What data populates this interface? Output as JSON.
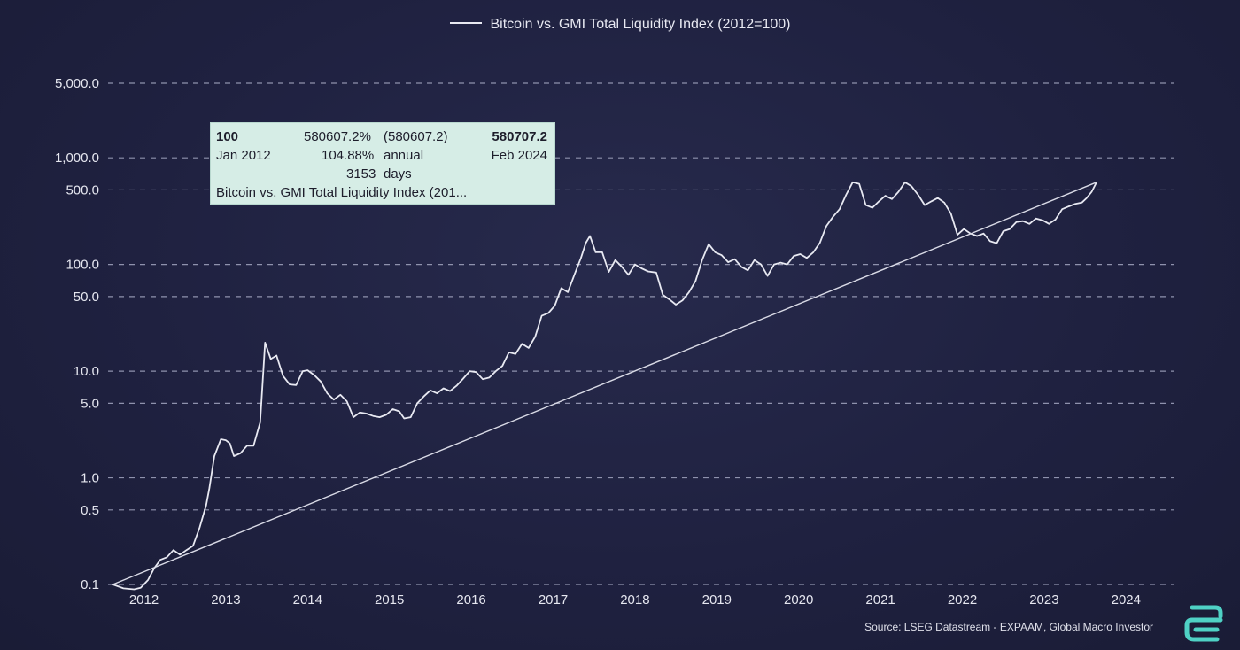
{
  "chart_data": {
    "type": "line",
    "title": "",
    "legend": {
      "entries": [
        "Bitcoin vs. GMI Total Liquidity Index (2012=100)"
      ],
      "placement": "top-center"
    },
    "y_scale": "log",
    "ylim": [
      0.08,
      8000
    ],
    "xlim": [
      2011.6,
      2024.4
    ],
    "y_ticks": [
      {
        "value": 5000,
        "label": "5,000.0"
      },
      {
        "value": 1000,
        "label": "1,000.0"
      },
      {
        "value": 500,
        "label": "500.0"
      },
      {
        "value": 100,
        "label": "100.0"
      },
      {
        "value": 50,
        "label": "50.0"
      },
      {
        "value": 10,
        "label": "10.0"
      },
      {
        "value": 5,
        "label": "5.0"
      },
      {
        "value": 1,
        "label": "1.0"
      },
      {
        "value": 0.5,
        "label": "0.5"
      },
      {
        "value": 0.1,
        "label": "0.1"
      }
    ],
    "x_ticks": [
      "2012",
      "2013",
      "2014",
      "2015",
      "2016",
      "2017",
      "2018",
      "2019",
      "2020",
      "2021",
      "2022",
      "2023",
      "2024"
    ],
    "grid": {
      "horizontal": true,
      "style": "dashed"
    },
    "series": [
      {
        "name": "Bitcoin vs. GMI Total Liquidity Index (2012=100)",
        "color": "#e8e9f2",
        "points": [
          [
            2011.62,
            0.1
          ],
          [
            2011.75,
            0.092
          ],
          [
            2011.88,
            0.09
          ],
          [
            2011.96,
            0.093
          ],
          [
            2012.05,
            0.11
          ],
          [
            2012.12,
            0.14
          ],
          [
            2012.2,
            0.17
          ],
          [
            2012.28,
            0.18
          ],
          [
            2012.36,
            0.21
          ],
          [
            2012.44,
            0.19
          ],
          [
            2012.52,
            0.21
          ],
          [
            2012.6,
            0.23
          ],
          [
            2012.68,
            0.34
          ],
          [
            2012.76,
            0.55
          ],
          [
            2012.8,
            0.8
          ],
          [
            2012.86,
            1.6
          ],
          [
            2012.94,
            2.3
          ],
          [
            2013.0,
            2.25
          ],
          [
            2013.05,
            2.1
          ],
          [
            2013.1,
            1.6
          ],
          [
            2013.18,
            1.7
          ],
          [
            2013.26,
            2.0
          ],
          [
            2013.34,
            2.0
          ],
          [
            2013.42,
            3.3
          ],
          [
            2013.48,
            18.5
          ],
          [
            2013.55,
            13.0
          ],
          [
            2013.62,
            14.0
          ],
          [
            2013.7,
            9.0
          ],
          [
            2013.78,
            7.5
          ],
          [
            2013.86,
            7.4
          ],
          [
            2013.94,
            10.0
          ],
          [
            2014.0,
            10.2
          ],
          [
            2014.08,
            9.2
          ],
          [
            2014.16,
            8.0
          ],
          [
            2014.24,
            6.2
          ],
          [
            2014.32,
            5.4
          ],
          [
            2014.4,
            6.0
          ],
          [
            2014.48,
            5.2
          ],
          [
            2014.56,
            3.7
          ],
          [
            2014.64,
            4.1
          ],
          [
            2014.72,
            4.0
          ],
          [
            2014.8,
            3.8
          ],
          [
            2014.88,
            3.7
          ],
          [
            2014.96,
            3.9
          ],
          [
            2015.04,
            4.4
          ],
          [
            2015.12,
            4.2
          ],
          [
            2015.18,
            3.6
          ],
          [
            2015.26,
            3.7
          ],
          [
            2015.34,
            5.0
          ],
          [
            2015.42,
            5.8
          ],
          [
            2015.5,
            6.6
          ],
          [
            2015.58,
            6.2
          ],
          [
            2015.66,
            6.9
          ],
          [
            2015.74,
            6.5
          ],
          [
            2015.82,
            7.3
          ],
          [
            2015.9,
            8.5
          ],
          [
            2015.98,
            10.0
          ],
          [
            2016.06,
            9.8
          ],
          [
            2016.14,
            8.4
          ],
          [
            2016.22,
            8.7
          ],
          [
            2016.3,
            10.0
          ],
          [
            2016.38,
            11.2
          ],
          [
            2016.46,
            15.0
          ],
          [
            2016.54,
            14.5
          ],
          [
            2016.62,
            18.0
          ],
          [
            2016.7,
            16.5
          ],
          [
            2016.78,
            21.0
          ],
          [
            2016.86,
            33.0
          ],
          [
            2016.94,
            35.0
          ],
          [
            2017.02,
            41.0
          ],
          [
            2017.1,
            60.0
          ],
          [
            2017.18,
            55.0
          ],
          [
            2017.26,
            80.0
          ],
          [
            2017.34,
            115.0
          ],
          [
            2017.4,
            160.0
          ],
          [
            2017.45,
            185.0
          ],
          [
            2017.52,
            130.0
          ],
          [
            2017.6,
            130.0
          ],
          [
            2017.68,
            85.0
          ],
          [
            2017.76,
            110.0
          ],
          [
            2017.84,
            95.0
          ],
          [
            2017.92,
            80.0
          ],
          [
            2018.0,
            100.0
          ],
          [
            2018.08,
            92.0
          ],
          [
            2018.16,
            86.0
          ],
          [
            2018.26,
            84.0
          ],
          [
            2018.34,
            52.0
          ],
          [
            2018.42,
            47.0
          ],
          [
            2018.5,
            42.0
          ],
          [
            2018.58,
            46.0
          ],
          [
            2018.66,
            55.0
          ],
          [
            2018.74,
            70.0
          ],
          [
            2018.82,
            110.0
          ],
          [
            2018.9,
            155.0
          ],
          [
            2018.98,
            130.0
          ],
          [
            2019.06,
            122.0
          ],
          [
            2019.14,
            105.0
          ],
          [
            2019.22,
            112.0
          ],
          [
            2019.3,
            95.0
          ],
          [
            2019.38,
            88.0
          ],
          [
            2019.46,
            110.0
          ],
          [
            2019.54,
            100.0
          ],
          [
            2019.62,
            78.0
          ],
          [
            2019.7,
            100.0
          ],
          [
            2019.78,
            104.0
          ],
          [
            2019.86,
            100.0
          ],
          [
            2019.94,
            120.0
          ],
          [
            2020.02,
            125.0
          ],
          [
            2020.1,
            115.0
          ],
          [
            2020.18,
            130.0
          ],
          [
            2020.26,
            160.0
          ],
          [
            2020.34,
            230.0
          ],
          [
            2020.42,
            280.0
          ],
          [
            2020.5,
            330.0
          ],
          [
            2020.58,
            450.0
          ],
          [
            2020.66,
            590.0
          ],
          [
            2020.74,
            570.0
          ],
          [
            2020.82,
            360.0
          ],
          [
            2020.9,
            340.0
          ],
          [
            2020.98,
            390.0
          ],
          [
            2021.06,
            440.0
          ],
          [
            2021.14,
            410.0
          ],
          [
            2021.22,
            480.0
          ],
          [
            2021.3,
            590.0
          ],
          [
            2021.38,
            540.0
          ],
          [
            2021.46,
            450.0
          ],
          [
            2021.54,
            360.0
          ],
          [
            2021.62,
            390.0
          ],
          [
            2021.7,
            420.0
          ],
          [
            2021.78,
            380.0
          ],
          [
            2021.86,
            300.0
          ],
          [
            2021.94,
            190.0
          ],
          [
            2022.02,
            215.0
          ],
          [
            2022.1,
            195.0
          ],
          [
            2022.18,
            185.0
          ],
          [
            2022.26,
            195.0
          ],
          [
            2022.34,
            165.0
          ],
          [
            2022.42,
            158.0
          ],
          [
            2022.5,
            205.0
          ],
          [
            2022.58,
            215.0
          ],
          [
            2022.66,
            250.0
          ],
          [
            2022.74,
            255.0
          ],
          [
            2022.82,
            240.0
          ],
          [
            2022.9,
            270.0
          ],
          [
            2022.98,
            260.0
          ],
          [
            2023.06,
            240.0
          ],
          [
            2023.14,
            265.0
          ],
          [
            2023.22,
            330.0
          ],
          [
            2023.3,
            350.0
          ],
          [
            2023.38,
            370.0
          ],
          [
            2023.46,
            380.0
          ],
          [
            2023.52,
            420.0
          ],
          [
            2023.58,
            480.0
          ],
          [
            2023.64,
            590.0
          ]
        ]
      },
      {
        "name": "",
        "color": "#d9dae6",
        "points": [
          [
            2011.62,
            0.1
          ],
          [
            2023.64,
            580707.2
          ]
        ]
      }
    ],
    "tooltip": {
      "start_value": "100",
      "change": "580607.2%",
      "change_abs": "(580607.2)",
      "end_value": "580707.2",
      "start_date": "Jan 2012",
      "annual": "104.88%",
      "annual_label": "annual",
      "end_date": "Feb 2024",
      "days": "3153",
      "days_label": "days",
      "series_label": "Bitcoin vs. GMI Total Liquidity Index (201..."
    },
    "source": "Source: LSEG Datastream - EXPAAM, Global Macro Investor"
  }
}
